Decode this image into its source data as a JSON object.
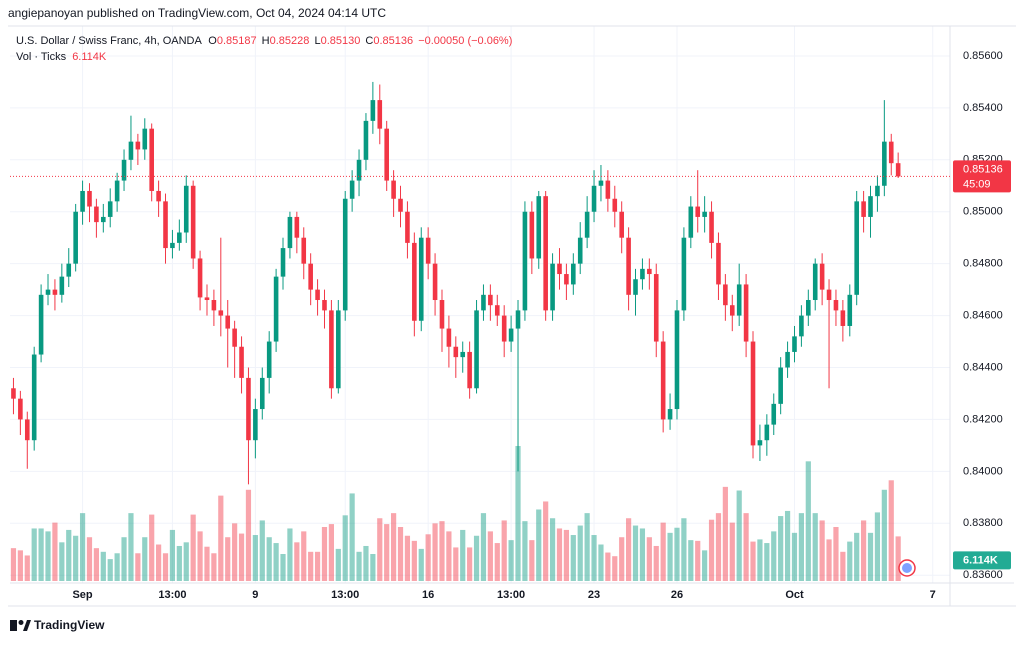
{
  "header": {
    "byline": "angiepanoyan published on TradingView.com, Oct 04, 2024 04:14 UTC"
  },
  "chart_data": {
    "type": "candlestick",
    "symbol": "U.S. Dollar / Swiss Franc, 4h, OANDA",
    "ohlc": {
      "o_label": "O",
      "open": 0.85187,
      "h_label": "H",
      "high": 0.85228,
      "l_label": "L",
      "low": {
        "value": 0.8513,
        "label": "0.85130"
      },
      "c_label": "C",
      "close": 0.85136,
      "change": {
        "value": -0.0005,
        "label": "−0.00050"
      },
      "change_pct": {
        "value": -0.06,
        "label": "(−0.06%)"
      }
    },
    "volume_title": "Vol · Ticks",
    "volume_label": "6.114K",
    "countdown": "45:09",
    "up_color": "#089981",
    "down_color": "#f23645",
    "grid": true,
    "ylim": [
      0.8357,
      0.857
    ],
    "yticks": [
      {
        "value": 0.836,
        "label": "0.83600"
      },
      {
        "value": 0.838,
        "label": "0.83800"
      },
      {
        "value": 0.84,
        "label": "0.84000"
      },
      {
        "value": 0.842,
        "label": "0.84200"
      },
      {
        "value": 0.844,
        "label": "0.84400"
      },
      {
        "value": 0.846,
        "label": "0.84600"
      },
      {
        "value": 0.848,
        "label": "0.84800"
      },
      {
        "value": 0.85,
        "label": "0.85000"
      },
      {
        "value": 0.852,
        "label": "0.85200"
      },
      {
        "value": 0.854,
        "label": "0.85400"
      },
      {
        "value": 0.856,
        "label": "0.85600"
      }
    ],
    "categories": [
      null,
      null,
      null,
      null,
      null,
      null,
      null,
      null,
      null,
      null,
      "Sep",
      null,
      null,
      null,
      null,
      null,
      null,
      null,
      null,
      null,
      null,
      null,
      null,
      "13:00",
      null,
      null,
      null,
      null,
      null,
      null,
      null,
      null,
      null,
      null,
      null,
      "9",
      null,
      null,
      null,
      null,
      null,
      null,
      null,
      null,
      null,
      null,
      null,
      null,
      "13:00",
      null,
      null,
      null,
      null,
      null,
      null,
      null,
      null,
      null,
      null,
      null,
      "16",
      null,
      null,
      null,
      null,
      null,
      null,
      null,
      null,
      null,
      null,
      null,
      "13:00",
      null,
      null,
      null,
      null,
      null,
      null,
      null,
      null,
      null,
      null,
      null,
      "23",
      null,
      null,
      null,
      null,
      null,
      null,
      null,
      null,
      null,
      null,
      null,
      "26",
      null,
      null,
      null,
      null,
      null,
      null,
      null,
      null,
      null,
      null,
      null,
      null,
      null,
      null,
      null,
      null,
      "Oct",
      null,
      null,
      null,
      null,
      null,
      null,
      null,
      null,
      null,
      null,
      null,
      null,
      null,
      null,
      null,
      null,
      null,
      null,
      null,
      "7",
      null,
      null
    ],
    "open": [
      0.8432,
      0.8428,
      0.842,
      0.8412,
      0.8445,
      0.8468,
      0.847,
      0.8468,
      0.8475,
      0.848,
      0.85,
      0.8508,
      0.8502,
      0.8496,
      0.8498,
      0.8504,
      0.8512,
      0.852,
      0.8527,
      0.8524,
      0.8532,
      0.8508,
      0.8504,
      0.8486,
      0.8488,
      0.8492,
      0.851,
      0.8482,
      0.8467,
      0.8466,
      0.8462,
      0.846,
      0.8455,
      0.8448,
      0.8436,
      0.8412,
      0.8424,
      0.8436,
      0.845,
      0.8475,
      0.8486,
      0.8498,
      0.849,
      0.848,
      0.847,
      0.8466,
      0.8462,
      0.8432,
      0.8462,
      0.8505,
      0.8512,
      0.852,
      0.8535,
      0.8543,
      0.8532,
      0.8512,
      0.8505,
      0.85,
      0.8488,
      0.8458,
      0.849,
      0.848,
      0.8466,
      0.8455,
      0.8448,
      0.8444,
      0.8446,
      0.8432,
      0.8462,
      0.8468,
      0.8464,
      0.846,
      0.845,
      0.8455,
      0.8462,
      0.85,
      0.8482,
      0.8506,
      0.8462,
      0.848,
      0.8476,
      0.8472,
      0.848,
      0.849,
      0.85,
      0.851,
      0.8512,
      0.8505,
      0.85,
      0.849,
      0.8468,
      0.8474,
      0.8478,
      0.8476,
      0.845,
      0.842,
      0.8424,
      0.8462,
      0.849,
      0.8502,
      0.8498,
      0.85,
      0.8488,
      0.8472,
      0.8464,
      0.846,
      0.8472,
      0.845,
      0.841,
      0.8412,
      0.8418,
      0.8426,
      0.844,
      0.8446,
      0.8452,
      0.846,
      0.8466,
      0.848,
      0.847,
      0.8466,
      0.8462,
      0.8456,
      0.8468,
      0.8504,
      0.8498,
      0.8506,
      0.851,
      0.8527,
      0.85187,
      null,
      null,
      null,
      null,
      null,
      null,
      null
    ],
    "high": [
      0.8436,
      0.8431,
      0.8423,
      0.8448,
      0.8472,
      0.8476,
      0.8474,
      0.848,
      0.8486,
      0.8503,
      0.8512,
      0.8511,
      0.8505,
      0.8503,
      0.8509,
      0.8515,
      0.8524,
      0.8537,
      0.853,
      0.8536,
      0.8534,
      0.8512,
      0.8507,
      0.8493,
      0.8497,
      0.8514,
      0.8512,
      0.8485,
      0.8472,
      0.847,
      0.849,
      0.8466,
      0.8458,
      0.8452,
      0.844,
      0.8428,
      0.844,
      0.8454,
      0.8478,
      0.849,
      0.85,
      0.85,
      0.8494,
      0.8484,
      0.8474,
      0.847,
      0.8466,
      0.8466,
      0.8508,
      0.8516,
      0.8524,
      0.8538,
      0.855,
      0.8549,
      0.8535,
      0.8516,
      0.851,
      0.8504,
      0.8492,
      0.8494,
      0.8494,
      0.8484,
      0.847,
      0.846,
      0.8452,
      0.845,
      0.845,
      0.8466,
      0.8472,
      0.8472,
      0.8468,
      0.8464,
      0.846,
      0.8466,
      0.8504,
      0.8504,
      0.8508,
      0.8508,
      0.8484,
      0.8486,
      0.848,
      0.8484,
      0.8496,
      0.8506,
      0.8516,
      0.8518,
      0.8516,
      0.851,
      0.8504,
      0.8494,
      0.8478,
      0.8482,
      0.8482,
      0.848,
      0.8454,
      0.843,
      0.8466,
      0.8494,
      0.8506,
      0.8516,
      0.8506,
      0.8504,
      0.8492,
      0.8476,
      0.8468,
      0.848,
      0.8476,
      0.8454,
      0.8418,
      0.8422,
      0.843,
      0.8444,
      0.845,
      0.8456,
      0.8464,
      0.847,
      0.8482,
      0.8484,
      0.8474,
      0.847,
      0.8466,
      0.8472,
      0.8508,
      0.8508,
      0.851,
      0.8514,
      0.8543,
      0.853,
      0.85228,
      null,
      null,
      null,
      null,
      null,
      null,
      null
    ],
    "low": [
      0.8422,
      0.8414,
      0.8401,
      0.8408,
      0.8442,
      0.8464,
      0.8462,
      0.8465,
      0.8471,
      0.8477,
      0.8495,
      0.8496,
      0.849,
      0.8492,
      0.8494,
      0.85,
      0.8508,
      0.8516,
      0.8518,
      0.852,
      0.8504,
      0.8498,
      0.848,
      0.8482,
      0.8485,
      0.8488,
      0.8478,
      0.8462,
      0.846,
      0.8456,
      0.8452,
      0.844,
      0.8436,
      0.843,
      0.8395,
      0.8405,
      0.842,
      0.843,
      0.8446,
      0.847,
      0.8482,
      0.8484,
      0.8474,
      0.8464,
      0.846,
      0.8455,
      0.8428,
      0.843,
      0.8458,
      0.85,
      0.8506,
      0.8516,
      0.853,
      0.8526,
      0.8508,
      0.8498,
      0.8494,
      0.8482,
      0.8452,
      0.8454,
      0.8474,
      0.846,
      0.8446,
      0.844,
      0.8436,
      0.8438,
      0.8428,
      0.843,
      0.8458,
      0.8458,
      0.8456,
      0.8444,
      0.8446,
      0.84,
      0.8458,
      0.8476,
      0.8478,
      0.8458,
      0.8458,
      0.847,
      0.8466,
      0.8468,
      0.8476,
      0.8486,
      0.8496,
      0.8504,
      0.85,
      0.8494,
      0.8484,
      0.8462,
      0.846,
      0.847,
      0.847,
      0.8444,
      0.8415,
      0.8416,
      0.842,
      0.8458,
      0.8486,
      0.8492,
      0.8492,
      0.8482,
      0.8466,
      0.8458,
      0.8454,
      0.8456,
      0.8444,
      0.8405,
      0.8404,
      0.8406,
      0.8414,
      0.8422,
      0.8436,
      0.8442,
      0.8448,
      0.8456,
      0.8462,
      0.8464,
      0.8432,
      0.8456,
      0.845,
      0.8452,
      0.8464,
      0.8492,
      0.849,
      0.85,
      0.8506,
      0.8514,
      0.8513,
      null,
      null,
      null,
      null,
      null,
      null,
      null
    ],
    "close": [
      0.8428,
      0.842,
      0.8412,
      0.8445,
      0.8468,
      0.847,
      0.8468,
      0.8475,
      0.848,
      0.85,
      0.8508,
      0.8502,
      0.8496,
      0.8498,
      0.8504,
      0.8512,
      0.852,
      0.8527,
      0.8524,
      0.8532,
      0.8508,
      0.8504,
      0.8486,
      0.8488,
      0.8492,
      0.851,
      0.8482,
      0.8467,
      0.8466,
      0.8462,
      0.846,
      0.8455,
      0.8448,
      0.8436,
      0.8412,
      0.8424,
      0.8436,
      0.845,
      0.8475,
      0.8486,
      0.8498,
      0.849,
      0.848,
      0.847,
      0.8466,
      0.8462,
      0.8432,
      0.8462,
      0.8505,
      0.8512,
      0.852,
      0.8535,
      0.8543,
      0.8532,
      0.8512,
      0.8505,
      0.85,
      0.8488,
      0.8458,
      0.849,
      0.848,
      0.8466,
      0.8455,
      0.8448,
      0.8444,
      0.8446,
      0.8432,
      0.8462,
      0.8468,
      0.8464,
      0.846,
      0.845,
      0.8455,
      0.8462,
      0.85,
      0.8482,
      0.8506,
      0.8462,
      0.848,
      0.8476,
      0.8472,
      0.848,
      0.849,
      0.85,
      0.851,
      0.8512,
      0.8505,
      0.85,
      0.849,
      0.8468,
      0.8474,
      0.8478,
      0.8476,
      0.845,
      0.842,
      0.8424,
      0.8462,
      0.849,
      0.8502,
      0.8498,
      0.85,
      0.8488,
      0.8472,
      0.8464,
      0.846,
      0.8472,
      0.845,
      0.841,
      0.8412,
      0.8418,
      0.8426,
      0.844,
      0.8446,
      0.8452,
      0.846,
      0.8466,
      0.848,
      0.847,
      0.8466,
      0.8462,
      0.8456,
      0.8468,
      0.8504,
      0.8498,
      0.8506,
      0.851,
      0.8527,
      0.85187,
      0.85136,
      null,
      null,
      null,
      null,
      null,
      null,
      null
    ],
    "volume": [
      4500,
      4200,
      3500,
      7200,
      7200,
      6800,
      8000,
      5300,
      7000,
      6200,
      9300,
      6000,
      4500,
      4000,
      3000,
      3800,
      6000,
      9300,
      3800,
      6000,
      9100,
      5000,
      3800,
      7000,
      4800,
      5300,
      9100,
      6800,
      4700,
      3800,
      11700,
      6000,
      7900,
      6500,
      12500,
      6300,
      8300,
      6000,
      5200,
      3700,
      7200,
      5300,
      6800,
      4000,
      4000,
      7400,
      7800,
      4400,
      9000,
      12000,
      4000,
      4800,
      3700,
      8600,
      7800,
      9300,
      7400,
      6200,
      5500,
      4400,
      6400,
      7900,
      8200,
      6800,
      4600,
      7000,
      4600,
      6200,
      9300,
      6800,
      5200,
      8300,
      5600,
      18500,
      8200,
      5600,
      9800,
      10900,
      8600,
      7200,
      7000,
      6300,
      7600,
      9300,
      6300,
      5000,
      3900,
      3400,
      6000,
      8600,
      7600,
      7200,
      6000,
      4800,
      8000,
      6600,
      7300,
      8600,
      5600,
      5500,
      4200,
      8400,
      9300,
      12900,
      8000,
      12400,
      9300,
      5400,
      5700,
      5200,
      6800,
      8900,
      9600,
      6600,
      9300,
      16400,
      9300,
      8300,
      5700,
      7400,
      4000,
      5400,
      6600,
      8300,
      6600,
      9400,
      12500,
      13800,
      6114,
      null,
      null,
      null,
      null,
      null,
      null,
      null
    ]
  },
  "footer": {
    "brand": "TradingView"
  }
}
